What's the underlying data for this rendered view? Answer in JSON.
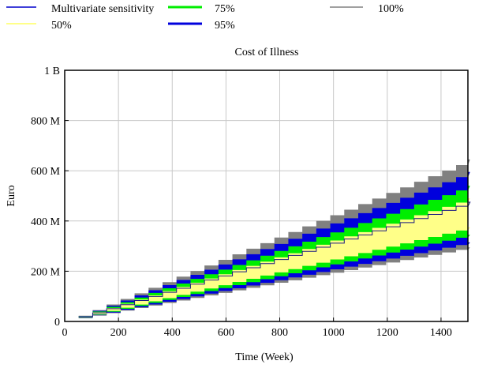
{
  "chart_data": {
    "type": "area",
    "title": "Cost of Illness",
    "xlabel": "Time (Week)",
    "ylabel": "Euro",
    "xlim": [
      0,
      1500
    ],
    "ylim": [
      0,
      1000000000
    ],
    "x_ticks": [
      0,
      200,
      400,
      600,
      800,
      1000,
      1200,
      1400
    ],
    "x_tick_labels": [
      "0",
      "200",
      "400",
      "600",
      "800",
      "1000",
      "1200",
      "1400"
    ],
    "y_ticks": [
      0,
      200000000,
      400000000,
      600000000,
      800000000,
      1000000000
    ],
    "y_tick_labels": [
      "0",
      "200 M",
      "400 M",
      "600 M",
      "800 M",
      "1 B"
    ],
    "grid": true,
    "legend_position": "top",
    "legend": [
      {
        "label": "Multivariate sensitivity",
        "color": "#0000cc"
      },
      {
        "label": "75%",
        "color": "#00ee00"
      },
      {
        "label": "100%",
        "color": "#808080"
      },
      {
        "label": "50%",
        "color": "#ffff88"
      },
      {
        "label": "95%",
        "color": "#0000dd"
      }
    ],
    "step_weeks": 52,
    "step_start_week": 52,
    "x": [
      52,
      1482
    ],
    "series": [
      {
        "name": "Multivariate sensitivity",
        "kind": "line",
        "color": "#1a1a80",
        "values": [
          18000000,
          475000000
        ]
      },
      {
        "name": "50%",
        "kind": "band",
        "color": "#ffff88",
        "lower": [
          16000000,
          375000000
        ],
        "upper": [
          20000000,
          490000000
        ]
      },
      {
        "name": "75%",
        "kind": "band",
        "color": "#00ee00",
        "lower": [
          15000000,
          345000000
        ],
        "upper": [
          21000000,
          540000000
        ]
      },
      {
        "name": "95%",
        "kind": "band",
        "color": "#0000dd",
        "lower": [
          14000000,
          315000000
        ],
        "upper": [
          22000000,
          595000000
        ]
      },
      {
        "name": "100%",
        "kind": "band",
        "color": "#808080",
        "lower": [
          13000000,
          295000000
        ],
        "upper": [
          23000000,
          645000000
        ]
      }
    ]
  }
}
